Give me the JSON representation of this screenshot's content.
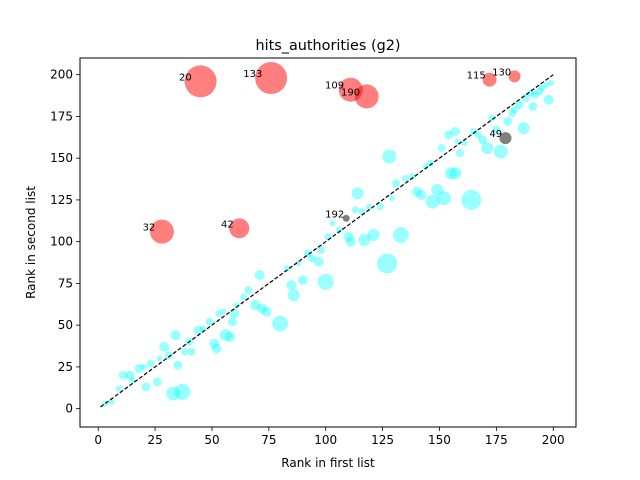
{
  "chart_data": {
    "type": "scatter",
    "title": "hits_authorities (g2)",
    "xlabel": "Rank in first list",
    "ylabel": "Rank in second list",
    "xlim": [
      -8,
      210
    ],
    "ylim": [
      -11,
      210
    ],
    "xticks": [
      0,
      25,
      50,
      75,
      100,
      125,
      150,
      175,
      200
    ],
    "yticks": [
      0,
      25,
      50,
      75,
      100,
      125,
      150,
      175,
      200
    ],
    "grid": false,
    "diagonal": {
      "from": [
        1,
        1
      ],
      "to": [
        200,
        200
      ],
      "style": "dashed",
      "color": "#000000"
    },
    "colors": {
      "outlier": "#ff0000",
      "inlier": "#00ffff",
      "highlight": "#000000"
    },
    "series": [
      {
        "category": "outlier",
        "points": [
          {
            "x": 45,
            "y": 196,
            "r": 16,
            "label": "20"
          },
          {
            "x": 76,
            "y": 198,
            "r": 16,
            "label": "133"
          },
          {
            "x": 111,
            "y": 191,
            "r": 12,
            "label": "109"
          },
          {
            "x": 118,
            "y": 187,
            "r": 12,
            "label": "190"
          },
          {
            "x": 28,
            "y": 106,
            "r": 12,
            "label": "32"
          },
          {
            "x": 62,
            "y": 108,
            "r": 10,
            "label": "42"
          },
          {
            "x": 172,
            "y": 197,
            "r": 7,
            "label": "115"
          },
          {
            "x": 183,
            "y": 199,
            "r": 6,
            "label": "130"
          }
        ]
      },
      {
        "category": "highlight",
        "points": [
          {
            "x": 179,
            "y": 162,
            "r": 6,
            "label": "49"
          },
          {
            "x": 109,
            "y": 114,
            "r": 3.5,
            "label": "192"
          }
        ]
      },
      {
        "category": "inlier",
        "points": [
          {
            "x": 3,
            "y": 3,
            "r": 3
          },
          {
            "x": 6,
            "y": 4,
            "r": 3
          },
          {
            "x": 9,
            "y": 12,
            "r": 3
          },
          {
            "x": 11,
            "y": 20,
            "r": 4.5
          },
          {
            "x": 14,
            "y": 20,
            "r": 4.5
          },
          {
            "x": 15,
            "y": 17,
            "r": 3
          },
          {
            "x": 18,
            "y": 24,
            "r": 4.5
          },
          {
            "x": 20,
            "y": 25,
            "r": 3
          },
          {
            "x": 21,
            "y": 13,
            "r": 4.5
          },
          {
            "x": 23,
            "y": 27,
            "r": 4
          },
          {
            "x": 26,
            "y": 16,
            "r": 4.5
          },
          {
            "x": 27,
            "y": 30,
            "r": 3
          },
          {
            "x": 29,
            "y": 37,
            "r": 5
          },
          {
            "x": 31,
            "y": 32,
            "r": 4
          },
          {
            "x": 33,
            "y": 9,
            "r": 7
          },
          {
            "x": 34,
            "y": 44,
            "r": 5
          },
          {
            "x": 35,
            "y": 26,
            "r": 4.5
          },
          {
            "x": 37,
            "y": 10,
            "r": 8
          },
          {
            "x": 38,
            "y": 34,
            "r": 3.5
          },
          {
            "x": 40,
            "y": 40,
            "r": 4
          },
          {
            "x": 41,
            "y": 34,
            "r": 4
          },
          {
            "x": 44,
            "y": 47,
            "r": 4.5
          },
          {
            "x": 46,
            "y": 48,
            "r": 3
          },
          {
            "x": 49,
            "y": 52,
            "r": 4
          },
          {
            "x": 51,
            "y": 39,
            "r": 5
          },
          {
            "x": 52,
            "y": 36,
            "r": 5
          },
          {
            "x": 53,
            "y": 57,
            "r": 3.5
          },
          {
            "x": 55,
            "y": 58,
            "r": 3
          },
          {
            "x": 56,
            "y": 44,
            "r": 6
          },
          {
            "x": 58,
            "y": 43,
            "r": 5
          },
          {
            "x": 59,
            "y": 52,
            "r": 4.5
          },
          {
            "x": 60,
            "y": 57,
            "r": 4.5
          },
          {
            "x": 61,
            "y": 62,
            "r": 3
          },
          {
            "x": 64,
            "y": 67,
            "r": 3.5
          },
          {
            "x": 66,
            "y": 71,
            "r": 4
          },
          {
            "x": 69,
            "y": 62,
            "r": 5
          },
          {
            "x": 71,
            "y": 80,
            "r": 5
          },
          {
            "x": 72,
            "y": 60,
            "r": 5
          },
          {
            "x": 74,
            "y": 58,
            "r": 5
          },
          {
            "x": 80,
            "y": 51,
            "r": 8
          },
          {
            "x": 83,
            "y": 84,
            "r": 3.5
          },
          {
            "x": 85,
            "y": 74,
            "r": 5
          },
          {
            "x": 86,
            "y": 68,
            "r": 6
          },
          {
            "x": 88,
            "y": 87,
            "r": 3
          },
          {
            "x": 90,
            "y": 77,
            "r": 5
          },
          {
            "x": 92,
            "y": 93,
            "r": 4
          },
          {
            "x": 94,
            "y": 90,
            "r": 4
          },
          {
            "x": 97,
            "y": 88,
            "r": 5
          },
          {
            "x": 98,
            "y": 95,
            "r": 4
          },
          {
            "x": 100,
            "y": 76,
            "r": 8
          },
          {
            "x": 101,
            "y": 103,
            "r": 3.5
          },
          {
            "x": 103,
            "y": 111,
            "r": 3
          },
          {
            "x": 106,
            "y": 107,
            "r": 3.5
          },
          {
            "x": 110,
            "y": 103,
            "r": 5
          },
          {
            "x": 111,
            "y": 100,
            "r": 5
          },
          {
            "x": 113,
            "y": 119,
            "r": 3.5
          },
          {
            "x": 114,
            "y": 129,
            "r": 6
          },
          {
            "x": 116,
            "y": 118,
            "r": 3.5
          },
          {
            "x": 117,
            "y": 101,
            "r": 6
          },
          {
            "x": 119,
            "y": 121,
            "r": 3
          },
          {
            "x": 121,
            "y": 104,
            "r": 6
          },
          {
            "x": 124,
            "y": 121,
            "r": 3.5
          },
          {
            "x": 127,
            "y": 87,
            "r": 10
          },
          {
            "x": 128,
            "y": 151,
            "r": 7
          },
          {
            "x": 129,
            "y": 126,
            "r": 3
          },
          {
            "x": 131,
            "y": 135,
            "r": 4
          },
          {
            "x": 133,
            "y": 104,
            "r": 8
          },
          {
            "x": 135,
            "y": 138,
            "r": 3.5
          },
          {
            "x": 138,
            "y": 139,
            "r": 3.5
          },
          {
            "x": 140,
            "y": 130,
            "r": 5
          },
          {
            "x": 142,
            "y": 128,
            "r": 5
          },
          {
            "x": 144,
            "y": 145,
            "r": 3
          },
          {
            "x": 146,
            "y": 147,
            "r": 3.5
          },
          {
            "x": 147,
            "y": 124,
            "r": 7
          },
          {
            "x": 149,
            "y": 131,
            "r": 6
          },
          {
            "x": 151,
            "y": 156,
            "r": 4
          },
          {
            "x": 152,
            "y": 126,
            "r": 7
          },
          {
            "x": 154,
            "y": 164,
            "r": 4.5
          },
          {
            "x": 155,
            "y": 141,
            "r": 6
          },
          {
            "x": 157,
            "y": 141,
            "r": 6
          },
          {
            "x": 157,
            "y": 166,
            "r": 4.5
          },
          {
            "x": 158,
            "y": 160,
            "r": 3
          },
          {
            "x": 159,
            "y": 153,
            "r": 4
          },
          {
            "x": 161,
            "y": 159,
            "r": 3
          },
          {
            "x": 164,
            "y": 125,
            "r": 10
          },
          {
            "x": 165,
            "y": 166,
            "r": 3.5
          },
          {
            "x": 167,
            "y": 164,
            "r": 3.5
          },
          {
            "x": 169,
            "y": 161,
            "r": 4.5
          },
          {
            "x": 171,
            "y": 156,
            "r": 6
          },
          {
            "x": 173,
            "y": 174,
            "r": 3.5
          },
          {
            "x": 175,
            "y": 167,
            "r": 4
          },
          {
            "x": 177,
            "y": 154,
            "r": 7
          },
          {
            "x": 180,
            "y": 172,
            "r": 4.5
          },
          {
            "x": 182,
            "y": 177,
            "r": 4
          },
          {
            "x": 183,
            "y": 179,
            "r": 3.5
          },
          {
            "x": 185,
            "y": 182,
            "r": 4.5
          },
          {
            "x": 187,
            "y": 168,
            "r": 6
          },
          {
            "x": 188,
            "y": 186,
            "r": 4
          },
          {
            "x": 190,
            "y": 189,
            "r": 3.5
          },
          {
            "x": 191,
            "y": 181,
            "r": 4.5
          },
          {
            "x": 192,
            "y": 188,
            "r": 4
          },
          {
            "x": 194,
            "y": 190,
            "r": 4
          },
          {
            "x": 195,
            "y": 192,
            "r": 3.5
          },
          {
            "x": 197,
            "y": 194,
            "r": 3
          },
          {
            "x": 198,
            "y": 185,
            "r": 5
          },
          {
            "x": 199,
            "y": 195,
            "r": 3
          }
        ]
      }
    ]
  }
}
